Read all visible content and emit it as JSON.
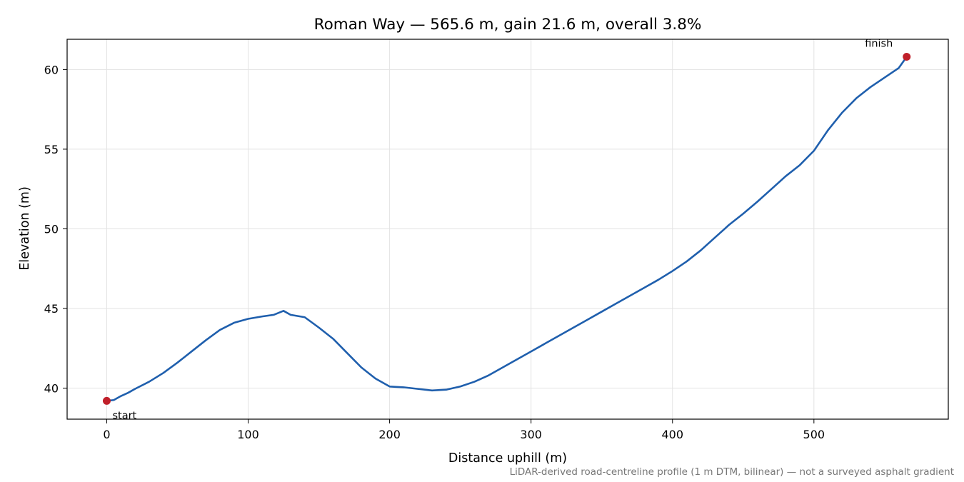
{
  "chart_data": {
    "type": "line",
    "title": "Roman Way — 565.6 m, gain 21.6 m, overall 3.8%",
    "xlabel": "Distance uphill (m)",
    "ylabel": "Elevation (m)",
    "xlim": [
      -28,
      595
    ],
    "ylim": [
      38.05,
      61.9
    ],
    "xticks": [
      0,
      100,
      200,
      300,
      400,
      500
    ],
    "yticks": [
      40,
      45,
      50,
      55,
      60
    ],
    "grid": true,
    "line_color": "#1f5fad",
    "marker_color": "#c0202a",
    "series": [
      {
        "x": [
          0,
          5,
          10,
          15,
          20,
          30,
          40,
          50,
          60,
          70,
          80,
          90,
          100,
          110,
          118,
          125,
          130,
          140,
          150,
          160,
          170,
          180,
          190,
          200,
          210,
          220,
          230,
          240,
          250,
          260,
          270,
          280,
          290,
          300,
          310,
          320,
          330,
          340,
          350,
          360,
          370,
          380,
          390,
          400,
          410,
          420,
          430,
          440,
          450,
          460,
          470,
          480,
          490,
          500,
          510,
          520,
          530,
          540,
          550,
          560,
          565.6
        ],
        "y": [
          39.2,
          39.25,
          39.5,
          39.7,
          39.95,
          40.4,
          40.95,
          41.6,
          42.3,
          43.0,
          43.65,
          44.1,
          44.35,
          44.5,
          44.6,
          44.85,
          44.6,
          44.45,
          43.8,
          43.1,
          42.2,
          41.3,
          40.6,
          40.1,
          40.05,
          39.95,
          39.85,
          39.9,
          40.1,
          40.4,
          40.8,
          41.3,
          41.8,
          42.3,
          42.8,
          43.3,
          43.8,
          44.3,
          44.8,
          45.3,
          45.8,
          46.3,
          46.8,
          47.35,
          47.95,
          48.65,
          49.45,
          50.25,
          50.95,
          51.7,
          52.5,
          53.3,
          54.0,
          54.9,
          56.2,
          57.3,
          58.2,
          58.9,
          59.5,
          60.1,
          60.8
        ]
      }
    ],
    "annotations": [
      {
        "text": "start",
        "x": 0,
        "y": 39.2
      },
      {
        "text": "finish",
        "x": 565.6,
        "y": 60.8
      }
    ],
    "footnote": "LiDAR-derived road-centreline profile (1 m DTM, bilinear) — not a surveyed asphalt gradient"
  }
}
